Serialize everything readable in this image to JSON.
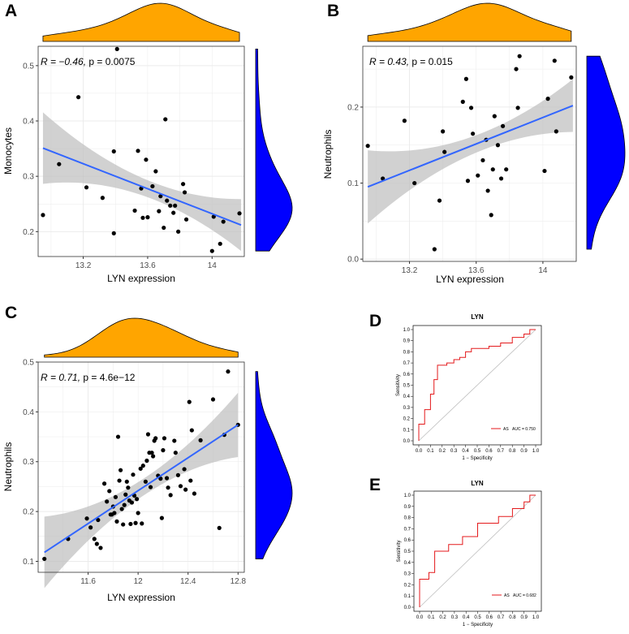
{
  "chart_data": [
    {
      "id": "A",
      "type": "scatter",
      "panel_label": "A",
      "xlabel": "LYN expression",
      "ylabel": "Monocytes",
      "xlim": [
        12.92,
        14.2
      ],
      "ylim": [
        0.155,
        0.535
      ],
      "xticks": [
        13.2,
        13.6,
        14.0
      ],
      "yticks": [
        0.2,
        0.3,
        0.4,
        0.5
      ],
      "stats": {
        "r_label": "R = −0.46, ",
        "p_label": "p = 0.0075"
      },
      "fit": {
        "x": [
          12.95,
          14.18
        ],
        "y": [
          0.351,
          0.212
        ]
      },
      "points": [
        [
          12.95,
          0.23
        ],
        [
          13.05,
          0.322
        ],
        [
          13.17,
          0.443
        ],
        [
          13.22,
          0.28
        ],
        [
          13.32,
          0.261
        ],
        [
          13.39,
          0.345
        ],
        [
          13.39,
          0.197
        ],
        [
          13.41,
          0.53
        ],
        [
          13.52,
          0.238
        ],
        [
          13.54,
          0.346
        ],
        [
          13.56,
          0.278
        ],
        [
          13.57,
          0.225
        ],
        [
          13.59,
          0.33
        ],
        [
          13.6,
          0.226
        ],
        [
          13.63,
          0.282
        ],
        [
          13.65,
          0.309
        ],
        [
          13.67,
          0.237
        ],
        [
          13.68,
          0.264
        ],
        [
          13.7,
          0.207
        ],
        [
          13.71,
          0.403
        ],
        [
          13.72,
          0.256
        ],
        [
          13.74,
          0.247
        ],
        [
          13.76,
          0.234
        ],
        [
          13.77,
          0.247
        ],
        [
          13.79,
          0.2
        ],
        [
          13.82,
          0.286
        ],
        [
          13.83,
          0.271
        ],
        [
          13.84,
          0.222
        ],
        [
          14.0,
          0.165
        ],
        [
          14.01,
          0.227
        ],
        [
          14.05,
          0.178
        ],
        [
          14.07,
          0.218
        ],
        [
          14.17,
          0.233
        ]
      ],
      "x_density": "LYN expression density",
      "y_density": "Monocytes density"
    },
    {
      "id": "B",
      "type": "scatter",
      "panel_label": "B",
      "xlabel": "LYN expression",
      "ylabel": "Neutrophils",
      "xlim": [
        12.92,
        14.2
      ],
      "ylim": [
        -0.003,
        0.28
      ],
      "xticks": [
        13.2,
        13.6,
        14.0
      ],
      "yticks": [
        0.0,
        0.1,
        0.2
      ],
      "ytick_labels": [
        "0.0",
        "0.1",
        "0.2"
      ],
      "stats": {
        "r_label": "R = 0.43, ",
        "p_label": "p = 0.015"
      },
      "fit": {
        "x": [
          12.95,
          14.18
        ],
        "y": [
          0.095,
          0.202
        ]
      },
      "points": [
        [
          12.95,
          0.149
        ],
        [
          13.04,
          0.106
        ],
        [
          13.17,
          0.182
        ],
        [
          13.23,
          0.1
        ],
        [
          13.35,
          0.013
        ],
        [
          13.38,
          0.077
        ],
        [
          13.4,
          0.168
        ],
        [
          13.41,
          0.141
        ],
        [
          13.52,
          0.207
        ],
        [
          13.54,
          0.237
        ],
        [
          13.55,
          0.103
        ],
        [
          13.57,
          0.199
        ],
        [
          13.58,
          0.165
        ],
        [
          13.61,
          0.11
        ],
        [
          13.64,
          0.13
        ],
        [
          13.66,
          0.157
        ],
        [
          13.67,
          0.09
        ],
        [
          13.69,
          0.058
        ],
        [
          13.7,
          0.118
        ],
        [
          13.71,
          0.188
        ],
        [
          13.73,
          0.15
        ],
        [
          13.75,
          0.106
        ],
        [
          13.76,
          0.175
        ],
        [
          13.78,
          0.118
        ],
        [
          13.84,
          0.25
        ],
        [
          13.85,
          0.199
        ],
        [
          13.86,
          0.267
        ],
        [
          14.01,
          0.116
        ],
        [
          14.03,
          0.211
        ],
        [
          14.07,
          0.261
        ],
        [
          14.08,
          0.168
        ],
        [
          14.17,
          0.239
        ]
      ],
      "x_density": "LYN expression density",
      "y_density": "Neutrophils density"
    },
    {
      "id": "C",
      "type": "scatter",
      "panel_label": "C",
      "xlabel": "LYN expression",
      "ylabel": "Neutrophils",
      "xlim": [
        11.2,
        12.85
      ],
      "ylim": [
        0.078,
        0.5
      ],
      "xticks": [
        11.6,
        12.0,
        12.4,
        12.8
      ],
      "yticks": [
        0.1,
        0.2,
        0.3,
        0.4,
        0.5
      ],
      "stats": {
        "r_label": "R = 0.71, ",
        "p_label": "p = 4.6e−12"
      },
      "fit": {
        "x": [
          11.25,
          12.8
        ],
        "y": [
          0.118,
          0.374
        ]
      },
      "points": [
        [
          11.25,
          0.105
        ],
        [
          11.44,
          0.145
        ],
        [
          11.59,
          0.186
        ],
        [
          11.62,
          0.168
        ],
        [
          11.65,
          0.145
        ],
        [
          11.67,
          0.135
        ],
        [
          11.68,
          0.183
        ],
        [
          11.7,
          0.127
        ],
        [
          11.73,
          0.256
        ],
        [
          11.75,
          0.22
        ],
        [
          11.77,
          0.241
        ],
        [
          11.78,
          0.194
        ],
        [
          11.79,
          0.194
        ],
        [
          11.8,
          0.21
        ],
        [
          11.81,
          0.197
        ],
        [
          11.82,
          0.229
        ],
        [
          11.83,
          0.18
        ],
        [
          11.84,
          0.35
        ],
        [
          11.85,
          0.262
        ],
        [
          11.86,
          0.283
        ],
        [
          11.87,
          0.205
        ],
        [
          11.88,
          0.174
        ],
        [
          11.89,
          0.213
        ],
        [
          11.9,
          0.234
        ],
        [
          11.91,
          0.26
        ],
        [
          11.92,
          0.248
        ],
        [
          11.93,
          0.222
        ],
        [
          11.94,
          0.175
        ],
        [
          11.95,
          0.218
        ],
        [
          11.96,
          0.274
        ],
        [
          11.97,
          0.232
        ],
        [
          11.98,
          0.177
        ],
        [
          11.99,
          0.225
        ],
        [
          12.0,
          0.197
        ],
        [
          12.02,
          0.286
        ],
        [
          12.03,
          0.176
        ],
        [
          12.04,
          0.292
        ],
        [
          12.06,
          0.26
        ],
        [
          12.07,
          0.302
        ],
        [
          12.08,
          0.355
        ],
        [
          12.09,
          0.318
        ],
        [
          12.1,
          0.249
        ],
        [
          12.11,
          0.318
        ],
        [
          12.12,
          0.311
        ],
        [
          12.13,
          0.342
        ],
        [
          12.14,
          0.347
        ],
        [
          12.16,
          0.272
        ],
        [
          12.18,
          0.266
        ],
        [
          12.19,
          0.187
        ],
        [
          12.2,
          0.323
        ],
        [
          12.21,
          0.347
        ],
        [
          12.23,
          0.267
        ],
        [
          12.24,
          0.248
        ],
        [
          12.26,
          0.233
        ],
        [
          12.29,
          0.342
        ],
        [
          12.3,
          0.318
        ],
        [
          12.32,
          0.273
        ],
        [
          12.34,
          0.251
        ],
        [
          12.37,
          0.285
        ],
        [
          12.38,
          0.244
        ],
        [
          12.41,
          0.42
        ],
        [
          12.42,
          0.262
        ],
        [
          12.43,
          0.363
        ],
        [
          12.45,
          0.236
        ],
        [
          12.5,
          0.343
        ],
        [
          12.6,
          0.425
        ],
        [
          12.65,
          0.167
        ],
        [
          12.69,
          0.354
        ],
        [
          12.72,
          0.481
        ],
        [
          12.8,
          0.374
        ]
      ],
      "x_density": "LYN expression density",
      "y_density": "Neutrophils density"
    },
    {
      "id": "D",
      "type": "line",
      "panel_label": "D",
      "title": "LYN",
      "xlabel": "1 − Specificity",
      "ylabel": "Sensitivity",
      "xlim": [
        0,
        1
      ],
      "ylim": [
        0,
        1
      ],
      "ticks": [
        0.0,
        0.1,
        0.2,
        0.3,
        0.4,
        0.5,
        0.6,
        0.7,
        0.8,
        0.9,
        1.0
      ],
      "tick_labels": [
        "0.0",
        "0.1",
        "0.2",
        "0.3",
        "0.4",
        "0.5",
        "0.6",
        "0.7",
        "0.8",
        "0.9",
        "1.0"
      ],
      "legend": {
        "label": "AS",
        "auc": "AUC = 0.750"
      },
      "roc": [
        [
          0,
          0
        ],
        [
          0,
          0.15
        ],
        [
          0.05,
          0.15
        ],
        [
          0.05,
          0.28
        ],
        [
          0.1,
          0.28
        ],
        [
          0.1,
          0.42
        ],
        [
          0.13,
          0.42
        ],
        [
          0.13,
          0.55
        ],
        [
          0.16,
          0.55
        ],
        [
          0.16,
          0.68
        ],
        [
          0.24,
          0.68
        ],
        [
          0.24,
          0.7
        ],
        [
          0.3,
          0.7
        ],
        [
          0.3,
          0.73
        ],
        [
          0.35,
          0.73
        ],
        [
          0.35,
          0.75
        ],
        [
          0.4,
          0.75
        ],
        [
          0.4,
          0.8
        ],
        [
          0.45,
          0.8
        ],
        [
          0.45,
          0.83
        ],
        [
          0.6,
          0.83
        ],
        [
          0.6,
          0.85
        ],
        [
          0.7,
          0.85
        ],
        [
          0.7,
          0.88
        ],
        [
          0.8,
          0.88
        ],
        [
          0.8,
          0.93
        ],
        [
          0.9,
          0.93
        ],
        [
          0.9,
          0.96
        ],
        [
          0.95,
          0.96
        ],
        [
          0.95,
          1
        ],
        [
          1,
          1
        ]
      ]
    },
    {
      "id": "E",
      "type": "line",
      "panel_label": "E",
      "title": "LYN",
      "xlabel": "1 − Specificity",
      "ylabel": "Sensitivity",
      "xlim": [
        0,
        1
      ],
      "ylim": [
        0,
        1
      ],
      "ticks": [
        0.0,
        0.1,
        0.2,
        0.3,
        0.4,
        0.5,
        0.6,
        0.7,
        0.8,
        0.9,
        1.0
      ],
      "tick_labels": [
        "0.0",
        "0.1",
        "0.2",
        "0.3",
        "0.4",
        "0.5",
        "0.6",
        "0.7",
        "0.8",
        "0.9",
        "1.0"
      ],
      "legend": {
        "label": "AS",
        "auc": "AUC = 0.682"
      },
      "roc": [
        [
          0,
          0
        ],
        [
          0,
          0.25
        ],
        [
          0.08,
          0.25
        ],
        [
          0.08,
          0.31
        ],
        [
          0.13,
          0.31
        ],
        [
          0.13,
          0.5
        ],
        [
          0.25,
          0.5
        ],
        [
          0.25,
          0.56
        ],
        [
          0.37,
          0.56
        ],
        [
          0.37,
          0.63
        ],
        [
          0.5,
          0.63
        ],
        [
          0.5,
          0.75
        ],
        [
          0.68,
          0.75
        ],
        [
          0.68,
          0.81
        ],
        [
          0.8,
          0.81
        ],
        [
          0.8,
          0.88
        ],
        [
          0.9,
          0.88
        ],
        [
          0.9,
          0.94
        ],
        [
          0.95,
          0.94
        ],
        [
          0.95,
          1
        ],
        [
          1,
          1
        ]
      ]
    }
  ],
  "colors": {
    "orange": "#FFA500",
    "blue": "#0000FF",
    "fit_line": "#3366FF",
    "ci_band": "#BEBEBE",
    "panel_bg": "#FFFFFF",
    "grid": "#EBEBEB",
    "roc_line": "#E41A1C",
    "diagonal": "#BEBEBE"
  }
}
